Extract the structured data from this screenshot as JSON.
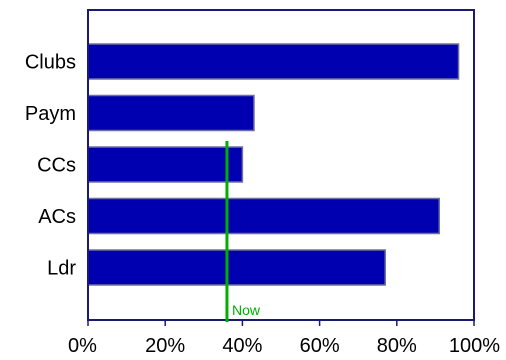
{
  "chart_data": {
    "type": "bar",
    "orientation": "horizontal",
    "categories": [
      "Clubs",
      "Paym",
      "CCs",
      "ACs",
      "Ldr"
    ],
    "values": [
      96,
      43,
      40,
      91,
      77
    ],
    "xlim": [
      0,
      100
    ],
    "x_ticks": [
      0,
      20,
      40,
      60,
      80,
      100
    ],
    "x_tick_labels": [
      "0%",
      "20%",
      "40%",
      "60%",
      "80%",
      "100%"
    ],
    "title": "",
    "xlabel": "",
    "ylabel": "",
    "grid": false,
    "legend": "none",
    "bar_color": "#0000b0",
    "bar_edge_color": "#7070a0",
    "marker": {
      "label": "Now",
      "value": 36,
      "color": "#00b000"
    }
  }
}
